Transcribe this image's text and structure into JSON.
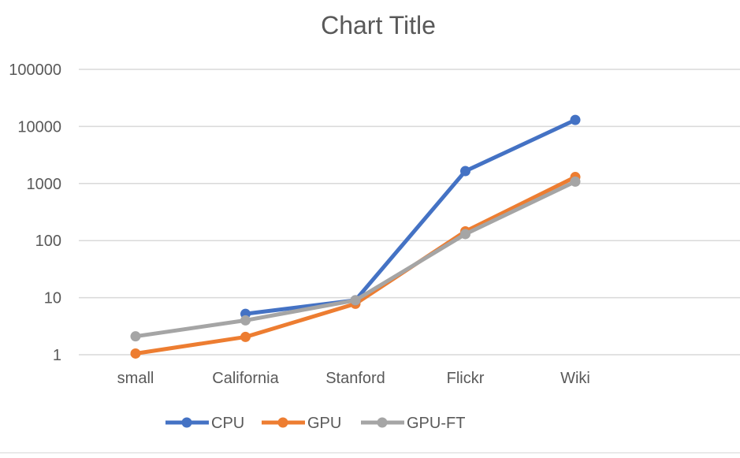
{
  "chart_data": {
    "type": "line",
    "title": "Chart Title",
    "xlabel": "",
    "ylabel": "",
    "y_scale": "log",
    "ylim": [
      1,
      100000
    ],
    "y_ticks": [
      "1",
      "10",
      "100",
      "1000",
      "10000",
      "100000"
    ],
    "y_tick_values": [
      1,
      10,
      100,
      1000,
      10000,
      100000
    ],
    "categories": [
      "small",
      "California",
      "Stanford",
      "Flickr",
      "Wiki"
    ],
    "grid": true,
    "legend_position": "bottom",
    "series": [
      {
        "name": "CPU",
        "color": "#4472C4",
        "values": [
          null,
          5.2,
          9,
          1650,
          13000
        ]
      },
      {
        "name": "GPU",
        "color": "#ED7D31",
        "values": [
          1.05,
          2.05,
          7.8,
          145,
          1300
        ]
      },
      {
        "name": "GPU-FT",
        "color": "#A5A5A5",
        "values": [
          2.1,
          4.0,
          9,
          130,
          1080
        ]
      }
    ]
  }
}
